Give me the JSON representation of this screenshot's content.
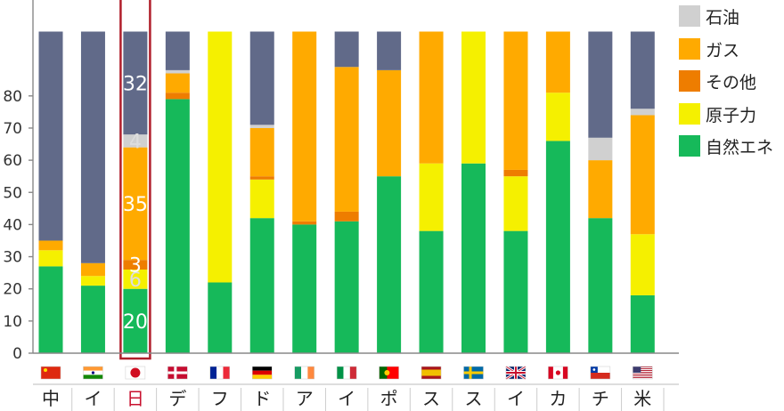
{
  "chart_data": {
    "type": "bar",
    "stacked": true,
    "ylim": [
      0,
      100
    ],
    "yticks": [
      0,
      10,
      20,
      30,
      40,
      50,
      60,
      70,
      80
    ],
    "grid": false,
    "legend_position": "top-right",
    "categories": [
      "中国",
      "インド",
      "日本",
      "デンマーク",
      "フランス",
      "ドイツ",
      "アイルランド",
      "イタリア",
      "ポルトガル",
      "スペイン",
      "スウェーデン",
      "イギリス",
      "カナダ",
      "チリ",
      "米国"
    ],
    "category_labels": [
      "中",
      "イ",
      "日",
      "デ",
      "フ",
      "ド",
      "ア",
      "イ",
      "ポ",
      "ス",
      "ス",
      "イ",
      "カ",
      "チ",
      "米"
    ],
    "highlight_category": "日本",
    "series": [
      {
        "key": "renewables",
        "color": "#16b95a",
        "values": [
          27,
          21,
          20,
          79,
          22,
          42,
          40,
          41,
          55,
          38,
          59,
          38,
          66,
          42,
          18
        ]
      },
      {
        "key": "nuclear",
        "color": "#f5f000",
        "values": [
          5,
          3,
          6,
          0,
          78,
          12,
          0,
          0,
          0,
          21,
          41,
          17,
          15,
          0,
          19
        ]
      },
      {
        "key": "other",
        "color": "#ee7d00",
        "values": [
          0,
          0,
          3,
          2,
          0,
          1,
          1,
          3,
          0,
          0,
          0,
          2,
          0,
          0,
          0
        ]
      },
      {
        "key": "gas",
        "color": "#ffaa00",
        "values": [
          3,
          4,
          35,
          6,
          0,
          15,
          59,
          45,
          33,
          41,
          0,
          43,
          19,
          18,
          37
        ]
      },
      {
        "key": "oil",
        "color": "#d0d0d0",
        "values": [
          0,
          0,
          4,
          1,
          0,
          1,
          0,
          0,
          0,
          0,
          0,
          0,
          0,
          7,
          2
        ]
      },
      {
        "key": "coal",
        "color": "#616a89",
        "values": [
          65,
          72,
          32,
          12,
          0,
          29,
          0,
          11,
          12,
          0,
          0,
          0,
          0,
          33,
          24
        ]
      }
    ],
    "data_labels": {
      "category": "日本",
      "values": [
        "20",
        "6",
        "3",
        "35",
        "4",
        "32"
      ]
    },
    "legend": [
      {
        "label": "石油",
        "color": "#d0d0d0"
      },
      {
        "label": "ガス",
        "color": "#ffaa00"
      },
      {
        "label": "その他",
        "color": "#ee7d00"
      },
      {
        "label": "原子力",
        "color": "#f5f000"
      },
      {
        "label": "自然エネ",
        "color": "#16b95a"
      }
    ],
    "flags": [
      "cn",
      "in",
      "jp",
      "dk",
      "fr",
      "de",
      "ie",
      "it",
      "pt",
      "es",
      "se",
      "gb",
      "ca",
      "cl",
      "us"
    ]
  }
}
